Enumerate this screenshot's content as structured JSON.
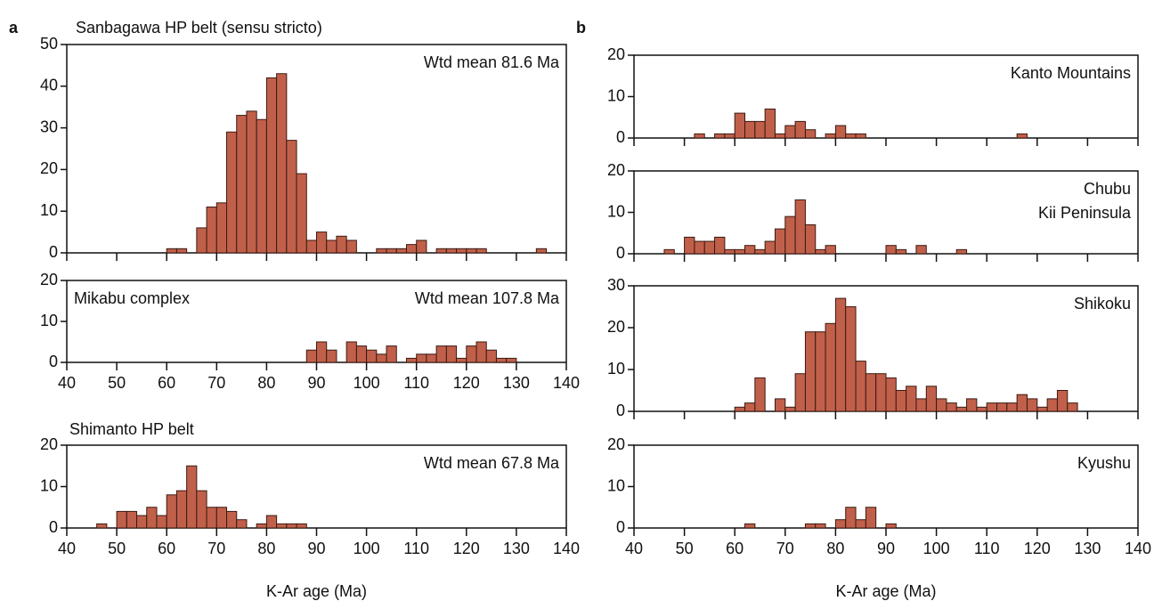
{
  "chart_data": [
    {
      "type": "histogram",
      "panel_label": "a",
      "title": "Sanbagawa HP belt (sensu stricto)",
      "color": "#c1604a",
      "annotations": [
        {
          "text": "Wtd mean 81.6 Ma",
          "position": "top-right"
        }
      ],
      "bins": [
        60,
        62,
        64,
        66,
        68,
        70,
        72,
        74,
        76,
        78,
        80,
        82,
        84,
        86,
        88,
        90,
        92,
        94,
        96,
        98,
        100,
        102,
        104,
        106,
        108,
        110,
        112,
        114,
        116,
        118,
        120,
        122,
        124,
        126,
        128,
        130,
        132,
        134,
        136
      ],
      "values": [
        1,
        1,
        0,
        6,
        11,
        12,
        29,
        33,
        34,
        32,
        42,
        43,
        27,
        19,
        3,
        5,
        3,
        4,
        3,
        0,
        0,
        1,
        1,
        1,
        2,
        3,
        0,
        1,
        1,
        1,
        1,
        1,
        0,
        0,
        0,
        0,
        0,
        1
      ],
      "xlim": [
        40,
        140
      ],
      "xticks": [
        40,
        50,
        60,
        70,
        80,
        90,
        100,
        110,
        120,
        130,
        140
      ],
      "xtick_labels": false,
      "ylim": [
        0,
        50
      ],
      "yticks": [
        0,
        10,
        20,
        30,
        40,
        50
      ]
    },
    {
      "type": "histogram",
      "color": "#c1604a",
      "annotations": [
        {
          "text": "Mikabu complex",
          "position": "top-left"
        },
        {
          "text": "Wtd mean 107.8 Ma",
          "position": "top-right"
        }
      ],
      "bins": [
        88,
        90,
        92,
        94,
        96,
        98,
        100,
        102,
        104,
        106,
        108,
        110,
        112,
        114,
        116,
        118,
        120,
        122,
        124,
        126,
        128,
        130
      ],
      "values": [
        3,
        5,
        3,
        0,
        5,
        4,
        3,
        2,
        4,
        0,
        1,
        2,
        2,
        4,
        4,
        1,
        4,
        5,
        3,
        1,
        1
      ],
      "xlim": [
        40,
        140
      ],
      "xticks": [
        40,
        50,
        60,
        70,
        80,
        90,
        100,
        110,
        120,
        130,
        140
      ],
      "xtick_labels": true,
      "ylim": [
        0,
        20
      ],
      "yticks": [
        0,
        10,
        20
      ]
    },
    {
      "type": "histogram",
      "color": "#c1604a",
      "annotations": [
        {
          "text": "Shimanto HP belt",
          "position": "above-left"
        },
        {
          "text": "Wtd mean 67.8 Ma",
          "position": "top-right"
        }
      ],
      "bins": [
        46,
        48,
        50,
        52,
        54,
        56,
        58,
        60,
        62,
        64,
        66,
        68,
        70,
        72,
        74,
        76,
        78,
        80,
        82,
        84,
        86,
        88
      ],
      "values": [
        1,
        0,
        4,
        4,
        3,
        5,
        3,
        8,
        9,
        15,
        9,
        5,
        5,
        4,
        2,
        0,
        1,
        3,
        1,
        1,
        1
      ],
      "xlim": [
        40,
        140
      ],
      "xticks": [
        40,
        50,
        60,
        70,
        80,
        90,
        100,
        110,
        120,
        130,
        140
      ],
      "xtick_labels": true,
      "xlabel": "K-Ar age (Ma)",
      "ylim": [
        0,
        20
      ],
      "yticks": [
        0,
        10,
        20
      ]
    },
    {
      "type": "histogram",
      "panel_label": "b",
      "color": "#c1604a",
      "annotations": [
        {
          "text": "Kanto Mountains",
          "position": "top-right"
        }
      ],
      "bins": [
        52,
        54,
        56,
        58,
        60,
        62,
        64,
        66,
        68,
        70,
        72,
        74,
        76,
        78,
        80,
        82,
        84,
        86,
        88,
        90,
        92,
        94,
        96,
        98,
        100,
        102,
        104,
        106,
        108,
        110,
        112,
        114,
        116,
        118
      ],
      "values": [
        1,
        0,
        1,
        1,
        6,
        4,
        4,
        7,
        1,
        3,
        4,
        2,
        0,
        1,
        3,
        1,
        1,
        0,
        0,
        0,
        0,
        0,
        0,
        0,
        0,
        0,
        0,
        0,
        0,
        0,
        0,
        0,
        1
      ],
      "xlim": [
        40,
        140
      ],
      "xticks": [
        40,
        50,
        60,
        70,
        80,
        90,
        100,
        110,
        120,
        130,
        140
      ],
      "xtick_labels": false,
      "ylim": [
        0,
        20
      ],
      "yticks": [
        0,
        10,
        20
      ]
    },
    {
      "type": "histogram",
      "color": "#c1604a",
      "annotations": [
        {
          "text": "Chubu",
          "position": "top-right"
        },
        {
          "text": "Kii Peninsula",
          "position": "top-right"
        }
      ],
      "bins": [
        46,
        48,
        50,
        52,
        54,
        56,
        58,
        60,
        62,
        64,
        66,
        68,
        70,
        72,
        74,
        76,
        78,
        80,
        82,
        84,
        86,
        88,
        90,
        92,
        94,
        96,
        98,
        100,
        102,
        104,
        106
      ],
      "values": [
        1,
        0,
        4,
        3,
        3,
        4,
        1,
        1,
        2,
        1,
        3,
        6,
        9,
        13,
        7,
        1,
        2,
        0,
        0,
        0,
        0,
        0,
        2,
        1,
        0,
        2,
        0,
        0,
        0,
        1
      ],
      "xlim": [
        40,
        140
      ],
      "xticks": [
        40,
        50,
        60,
        70,
        80,
        90,
        100,
        110,
        120,
        130,
        140
      ],
      "xtick_labels": false,
      "ylim": [
        0,
        20
      ],
      "yticks": [
        0,
        10,
        20
      ]
    },
    {
      "type": "histogram",
      "color": "#c1604a",
      "annotations": [
        {
          "text": "Shikoku",
          "position": "top-right"
        }
      ],
      "bins": [
        60,
        62,
        64,
        66,
        68,
        70,
        72,
        74,
        76,
        78,
        80,
        82,
        84,
        86,
        88,
        90,
        92,
        94,
        96,
        98,
        100,
        102,
        104,
        106,
        108,
        110,
        112,
        114,
        116,
        118,
        120,
        122,
        124,
        126,
        128
      ],
      "values": [
        1,
        2,
        8,
        0,
        3,
        1,
        9,
        19,
        19,
        21,
        27,
        25,
        12,
        9,
        9,
        8,
        5,
        6,
        3,
        6,
        3,
        2,
        1,
        3,
        1,
        2,
        2,
        2,
        4,
        3,
        1,
        3,
        5,
        2
      ],
      "xlim": [
        40,
        140
      ],
      "xticks": [
        40,
        50,
        60,
        70,
        80,
        90,
        100,
        110,
        120,
        130,
        140
      ],
      "xtick_labels": false,
      "ylim": [
        0,
        30
      ],
      "yticks": [
        0,
        10,
        20,
        30
      ]
    },
    {
      "type": "histogram",
      "color": "#c1604a",
      "annotations": [
        {
          "text": "Kyushu",
          "position": "top-right"
        }
      ],
      "bins": [
        62,
        64,
        66,
        68,
        70,
        72,
        74,
        76,
        78,
        80,
        82,
        84,
        86,
        88,
        90,
        92
      ],
      "values": [
        1,
        0,
        0,
        0,
        0,
        0,
        1,
        1,
        0,
        2,
        5,
        2,
        5,
        0,
        1
      ],
      "xlim": [
        40,
        140
      ],
      "xticks": [
        40,
        50,
        60,
        70,
        80,
        90,
        100,
        110,
        120,
        130,
        140
      ],
      "xtick_labels": true,
      "xlabel": "K-Ar age (Ma)",
      "ylim": [
        0,
        20
      ],
      "yticks": [
        0,
        10,
        20
      ]
    }
  ]
}
